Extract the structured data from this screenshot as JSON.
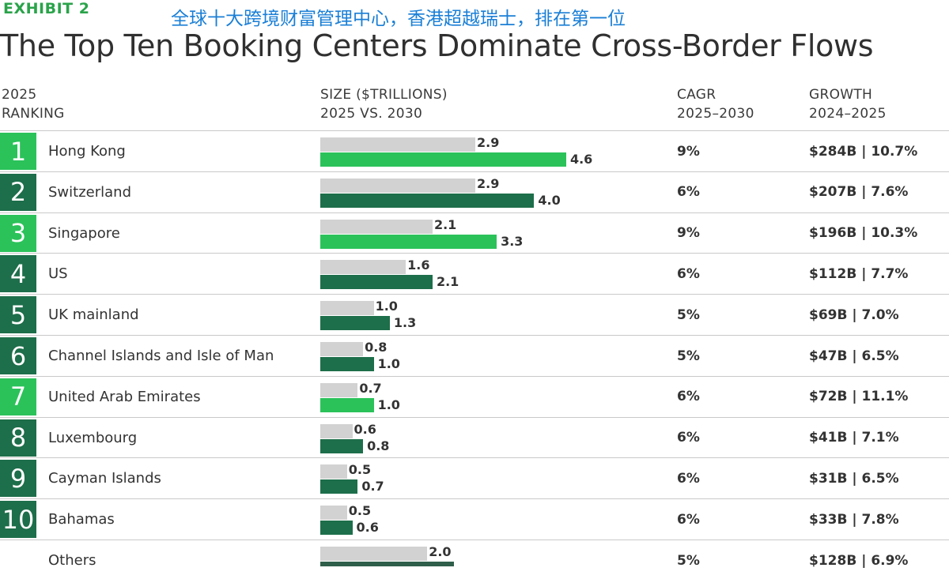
{
  "header": {
    "exhibit": "EXHIBIT 2",
    "overlay_caption": "全球十大跨境财富管理中心，香港超越瑞士，排在第一位",
    "title": "The Top Ten Booking Centers Dominate Cross-Border Flows"
  },
  "columns": {
    "ranking": [
      "2025",
      "RANKING"
    ],
    "size": [
      "SIZE ($TRILLIONS)",
      "2025 VS. 2030"
    ],
    "cagr": [
      "CAGR",
      "2025–2030"
    ],
    "growth": [
      "GROWTH",
      "2024–2025"
    ]
  },
  "colors": {
    "exhibit_green": "#2aa34a",
    "caption_blue": "#1a7fd6",
    "bright_green": "#2bc25a",
    "dark_green": "#1d6e4a",
    "bar_gray": "#d2d2d2",
    "bar_dark_others": "#2f5f4a"
  },
  "chart_data": {
    "type": "bar",
    "title": "The Top Ten Booking Centers Dominate Cross-Border Flows",
    "series": [
      {
        "name": "2025",
        "values": [
          2.9,
          2.9,
          2.1,
          1.6,
          1.0,
          0.8,
          0.7,
          0.6,
          0.5,
          0.5,
          2.0
        ]
      },
      {
        "name": "2030",
        "values": [
          4.6,
          4.0,
          3.3,
          2.1,
          1.3,
          1.0,
          1.0,
          0.8,
          0.7,
          0.6,
          null
        ]
      }
    ],
    "categories": [
      "Hong Kong",
      "Switzerland",
      "Singapore",
      "US",
      "UK mainland",
      "Channel Islands and Isle of Man",
      "United Arab Emirates",
      "Luxembourg",
      "Cayman Islands",
      "Bahamas",
      "Others"
    ],
    "xlabel": "SIZE ($TRILLIONS)",
    "rows": [
      {
        "rank": "1",
        "country": "Hong Kong",
        "v2025": 2.9,
        "v2030": 4.6,
        "l2025": "2.9",
        "l2030": "4.6",
        "cagr": "9%",
        "growth": "$284B | 10.7%",
        "highlight": true
      },
      {
        "rank": "2",
        "country": "Switzerland",
        "v2025": 2.9,
        "v2030": 4.0,
        "l2025": "2.9",
        "l2030": "4.0",
        "cagr": "6%",
        "growth": "$207B | 7.6%",
        "highlight": false
      },
      {
        "rank": "3",
        "country": "Singapore",
        "v2025": 2.1,
        "v2030": 3.3,
        "l2025": "2.1",
        "l2030": "3.3",
        "cagr": "9%",
        "growth": "$196B | 10.3%",
        "highlight": true
      },
      {
        "rank": "4",
        "country": "US",
        "v2025": 1.6,
        "v2030": 2.1,
        "l2025": "1.6",
        "l2030": "2.1",
        "cagr": "6%",
        "growth": "$112B | 7.7%",
        "highlight": false
      },
      {
        "rank": "5",
        "country": "UK mainland",
        "v2025": 1.0,
        "v2030": 1.3,
        "l2025": "1.0",
        "l2030": "1.3",
        "cagr": "5%",
        "growth": "$69B | 7.0%",
        "highlight": false
      },
      {
        "rank": "6",
        "country": "Channel Islands and Isle of Man",
        "v2025": 0.8,
        "v2030": 1.0,
        "l2025": "0.8",
        "l2030": "1.0",
        "cagr": "5%",
        "growth": "$47B | 6.5%",
        "highlight": false
      },
      {
        "rank": "7",
        "country": "United Arab Emirates",
        "v2025": 0.7,
        "v2030": 1.0,
        "l2025": "0.7",
        "l2030": "1.0",
        "cagr": "6%",
        "growth": "$72B | 11.1%",
        "highlight": true
      },
      {
        "rank": "8",
        "country": "Luxembourg",
        "v2025": 0.6,
        "v2030": 0.8,
        "l2025": "0.6",
        "l2030": "0.8",
        "cagr": "6%",
        "growth": "$41B | 7.1%",
        "highlight": false
      },
      {
        "rank": "9",
        "country": "Cayman Islands",
        "v2025": 0.5,
        "v2030": 0.7,
        "l2025": "0.5",
        "l2030": "0.7",
        "cagr": "6%",
        "growth": "$31B | 6.5%",
        "highlight": false
      },
      {
        "rank": "10",
        "country": "Bahamas",
        "v2025": 0.5,
        "v2030": 0.6,
        "l2025": "0.5",
        "l2030": "0.6",
        "cagr": "6%",
        "growth": "$33B | 7.8%",
        "highlight": false
      },
      {
        "rank": "",
        "country": "Others",
        "v2025": 2.0,
        "v2030": null,
        "l2025": "2.0",
        "l2030": "",
        "cagr": "5%",
        "growth": "$128B | 6.9%",
        "highlight": false
      }
    ]
  }
}
